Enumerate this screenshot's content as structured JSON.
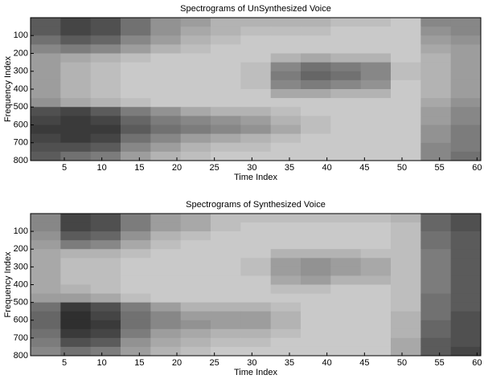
{
  "chart_data": [
    {
      "type": "heatmap",
      "title": "Spectrograms of UnSynthesized Voice",
      "xlabel": "Time Index",
      "ylabel": "Frequency Index",
      "xlim": [
        0.5,
        60.5
      ],
      "ylim": [
        0,
        800
      ],
      "yreverse": true,
      "xticks": [
        5,
        10,
        15,
        20,
        25,
        30,
        35,
        40,
        45,
        50,
        55,
        60
      ],
      "yticks": [
        100,
        200,
        300,
        400,
        500,
        600,
        700,
        800
      ],
      "z": [
        [
          0.7,
          0.8,
          0.75,
          0.6,
          0.45,
          0.4,
          0.3,
          0.3,
          0.3,
          0.3,
          0.25,
          0.25,
          0.2,
          0.5,
          0.5
        ],
        [
          0.7,
          0.8,
          0.75,
          0.6,
          0.45,
          0.35,
          0.3,
          0.25,
          0.25,
          0.25,
          0.2,
          0.2,
          0.2,
          0.45,
          0.5
        ],
        [
          0.6,
          0.7,
          0.65,
          0.5,
          0.4,
          0.3,
          0.25,
          0.2,
          0.2,
          0.2,
          0.2,
          0.2,
          0.2,
          0.4,
          0.45
        ],
        [
          0.5,
          0.55,
          0.5,
          0.4,
          0.3,
          0.25,
          0.2,
          0.2,
          0.2,
          0.2,
          0.2,
          0.2,
          0.2,
          0.35,
          0.4
        ],
        [
          0.4,
          0.35,
          0.3,
          0.25,
          0.2,
          0.2,
          0.2,
          0.2,
          0.3,
          0.35,
          0.3,
          0.3,
          0.2,
          0.3,
          0.4
        ],
        [
          0.4,
          0.3,
          0.25,
          0.2,
          0.2,
          0.2,
          0.2,
          0.25,
          0.5,
          0.6,
          0.55,
          0.5,
          0.25,
          0.3,
          0.4
        ],
        [
          0.4,
          0.3,
          0.25,
          0.2,
          0.2,
          0.2,
          0.2,
          0.25,
          0.55,
          0.65,
          0.6,
          0.5,
          0.25,
          0.3,
          0.4
        ],
        [
          0.4,
          0.3,
          0.25,
          0.2,
          0.2,
          0.2,
          0.2,
          0.25,
          0.5,
          0.55,
          0.5,
          0.45,
          0.2,
          0.3,
          0.4
        ],
        [
          0.4,
          0.3,
          0.25,
          0.2,
          0.2,
          0.2,
          0.2,
          0.2,
          0.35,
          0.35,
          0.3,
          0.3,
          0.2,
          0.3,
          0.4
        ],
        [
          0.45,
          0.35,
          0.3,
          0.25,
          0.2,
          0.2,
          0.2,
          0.2,
          0.2,
          0.2,
          0.2,
          0.2,
          0.2,
          0.35,
          0.45
        ],
        [
          0.75,
          0.8,
          0.7,
          0.55,
          0.45,
          0.35,
          0.3,
          0.3,
          0.25,
          0.2,
          0.2,
          0.2,
          0.2,
          0.4,
          0.5
        ],
        [
          0.8,
          0.85,
          0.8,
          0.65,
          0.55,
          0.5,
          0.45,
          0.4,
          0.3,
          0.25,
          0.2,
          0.2,
          0.2,
          0.4,
          0.5
        ],
        [
          0.85,
          0.85,
          0.85,
          0.7,
          0.6,
          0.55,
          0.5,
          0.45,
          0.35,
          0.25,
          0.2,
          0.2,
          0.2,
          0.45,
          0.55
        ],
        [
          0.8,
          0.85,
          0.8,
          0.6,
          0.5,
          0.4,
          0.35,
          0.3,
          0.25,
          0.2,
          0.2,
          0.2,
          0.2,
          0.45,
          0.55
        ],
        [
          0.75,
          0.75,
          0.7,
          0.5,
          0.4,
          0.3,
          0.25,
          0.25,
          0.2,
          0.2,
          0.2,
          0.2,
          0.2,
          0.5,
          0.55
        ],
        [
          0.7,
          0.6,
          0.55,
          0.4,
          0.3,
          0.25,
          0.2,
          0.2,
          0.2,
          0.2,
          0.2,
          0.2,
          0.2,
          0.5,
          0.6
        ]
      ]
    },
    {
      "type": "heatmap",
      "title": "Spectrograms of Synthesized Voice",
      "xlabel": "Time Index",
      "ylabel": "Frequency Index",
      "xlim": [
        0.5,
        60.5
      ],
      "ylim": [
        0,
        800
      ],
      "yreverse": true,
      "xticks": [
        5,
        10,
        15,
        20,
        25,
        30,
        35,
        40,
        45,
        50,
        55,
        60
      ],
      "yticks": [
        100,
        200,
        300,
        400,
        500,
        600,
        700,
        800
      ],
      "z": [
        [
          0.5,
          0.8,
          0.75,
          0.55,
          0.4,
          0.35,
          0.25,
          0.25,
          0.25,
          0.25,
          0.25,
          0.25,
          0.3,
          0.65,
          0.75
        ],
        [
          0.5,
          0.8,
          0.75,
          0.55,
          0.4,
          0.35,
          0.25,
          0.2,
          0.2,
          0.2,
          0.2,
          0.2,
          0.25,
          0.65,
          0.75
        ],
        [
          0.45,
          0.7,
          0.65,
          0.45,
          0.3,
          0.25,
          0.2,
          0.2,
          0.2,
          0.2,
          0.2,
          0.2,
          0.25,
          0.6,
          0.7
        ],
        [
          0.4,
          0.55,
          0.5,
          0.35,
          0.25,
          0.2,
          0.2,
          0.2,
          0.2,
          0.2,
          0.2,
          0.2,
          0.25,
          0.6,
          0.7
        ],
        [
          0.35,
          0.3,
          0.3,
          0.25,
          0.2,
          0.2,
          0.2,
          0.2,
          0.3,
          0.3,
          0.3,
          0.25,
          0.25,
          0.55,
          0.7
        ],
        [
          0.35,
          0.25,
          0.25,
          0.2,
          0.2,
          0.2,
          0.2,
          0.25,
          0.4,
          0.45,
          0.4,
          0.35,
          0.25,
          0.55,
          0.7
        ],
        [
          0.35,
          0.25,
          0.25,
          0.2,
          0.2,
          0.2,
          0.2,
          0.25,
          0.4,
          0.45,
          0.4,
          0.35,
          0.25,
          0.55,
          0.7
        ],
        [
          0.35,
          0.25,
          0.25,
          0.2,
          0.2,
          0.2,
          0.2,
          0.2,
          0.35,
          0.4,
          0.3,
          0.3,
          0.25,
          0.55,
          0.7
        ],
        [
          0.35,
          0.3,
          0.25,
          0.2,
          0.2,
          0.2,
          0.2,
          0.2,
          0.25,
          0.25,
          0.2,
          0.2,
          0.25,
          0.55,
          0.7
        ],
        [
          0.4,
          0.4,
          0.35,
          0.25,
          0.2,
          0.2,
          0.2,
          0.2,
          0.2,
          0.2,
          0.2,
          0.2,
          0.25,
          0.6,
          0.7
        ],
        [
          0.6,
          0.85,
          0.75,
          0.55,
          0.4,
          0.3,
          0.3,
          0.3,
          0.25,
          0.2,
          0.2,
          0.2,
          0.25,
          0.6,
          0.7
        ],
        [
          0.65,
          0.9,
          0.8,
          0.6,
          0.5,
          0.4,
          0.4,
          0.4,
          0.3,
          0.2,
          0.2,
          0.2,
          0.3,
          0.6,
          0.75
        ],
        [
          0.65,
          0.9,
          0.85,
          0.6,
          0.5,
          0.45,
          0.4,
          0.4,
          0.3,
          0.2,
          0.2,
          0.2,
          0.3,
          0.65,
          0.75
        ],
        [
          0.6,
          0.85,
          0.8,
          0.55,
          0.4,
          0.35,
          0.3,
          0.3,
          0.25,
          0.2,
          0.2,
          0.2,
          0.3,
          0.65,
          0.75
        ],
        [
          0.55,
          0.75,
          0.7,
          0.45,
          0.35,
          0.3,
          0.25,
          0.25,
          0.2,
          0.2,
          0.2,
          0.2,
          0.35,
          0.7,
          0.75
        ],
        [
          0.5,
          0.6,
          0.55,
          0.4,
          0.3,
          0.25,
          0.2,
          0.2,
          0.2,
          0.2,
          0.2,
          0.2,
          0.35,
          0.7,
          0.8
        ]
      ]
    }
  ]
}
